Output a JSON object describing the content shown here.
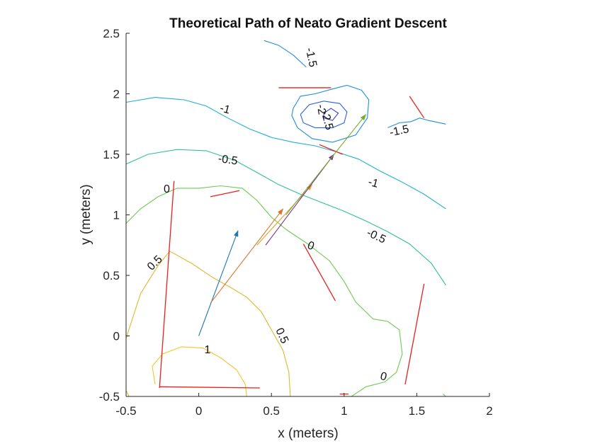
{
  "chart_data": {
    "type": "contour",
    "title": "Theoretical Path of Neato Gradient Descent",
    "xlabel": "x (meters)",
    "ylabel": "y (meters)",
    "xlim": [
      -0.5,
      2
    ],
    "ylim": [
      -0.5,
      2.5
    ],
    "xticks": [
      "-0.5",
      "0",
      "0.5",
      "1",
      "1.5",
      "2"
    ],
    "yticks": [
      "-0.5",
      "0",
      "0.5",
      "1",
      "1.5",
      "2",
      "2.5"
    ],
    "contour_labels": [
      "-1.5",
      "-2",
      "-2.5",
      "-1",
      "-1.5",
      "-0.5",
      "-1",
      "0",
      "-0.5",
      "0",
      "0.5",
      "1",
      "0.5",
      "0"
    ],
    "colors": {
      "level_-2.5": "#3b3fd0",
      "level_-2": "#2a62d8",
      "level_-1.5": "#1f8fd8",
      "level_-1": "#1fb0cf",
      "level_-0.5": "#2fbf9a",
      "level_0": "#6dcb52",
      "level_0.5": "#e0b92a",
      "level_1": "#f2c52a",
      "obstacle": "#e8201f",
      "path_arrow_1": "#1f77b4",
      "path_arrow_2": "#d9762a",
      "path_arrow_3": "#e0a32a",
      "path_arrow_4": "#7e2f8e",
      "path_arrow_5": "#77ac30"
    },
    "contours": [
      {
        "level": -2.5,
        "points": [
          [
            0.86,
            1.84
          ],
          [
            0.91,
            1.88
          ],
          [
            0.96,
            1.84
          ],
          [
            0.92,
            1.78
          ],
          [
            0.86,
            1.8
          ],
          [
            0.86,
            1.84
          ]
        ]
      },
      {
        "level": -2,
        "points": [
          [
            0.7,
            1.83
          ],
          [
            0.76,
            1.91
          ],
          [
            0.86,
            1.94
          ],
          [
            0.97,
            1.92
          ],
          [
            1.02,
            1.85
          ],
          [
            1.0,
            1.76
          ],
          [
            0.92,
            1.72
          ],
          [
            0.8,
            1.72
          ],
          [
            0.72,
            1.76
          ],
          [
            0.7,
            1.83
          ]
        ]
      },
      {
        "level": -1.5,
        "points": [
          [
            0.65,
            1.88
          ],
          [
            0.7,
            1.98
          ],
          [
            0.8,
            2.0
          ],
          [
            0.92,
            2.04
          ],
          [
            1.02,
            2.07
          ],
          [
            1.12,
            2.03
          ],
          [
            1.17,
            1.95
          ],
          [
            1.16,
            1.8
          ],
          [
            1.08,
            1.66
          ],
          [
            0.92,
            1.6
          ],
          [
            0.78,
            1.63
          ],
          [
            0.68,
            1.72
          ],
          [
            0.64,
            1.82
          ],
          [
            0.65,
            1.88
          ]
        ]
      },
      {
        "level": -1.5,
        "points": [
          [
            0.45,
            2.44
          ],
          [
            0.55,
            2.4
          ],
          [
            0.65,
            2.32
          ],
          [
            0.74,
            2.22
          ]
        ]
      },
      {
        "level": -1.5,
        "points": [
          [
            1.3,
            1.72
          ],
          [
            1.38,
            1.76
          ],
          [
            1.46,
            1.77
          ],
          [
            1.52,
            1.8
          ],
          [
            1.58,
            1.78
          ],
          [
            1.7,
            1.75
          ]
        ]
      },
      {
        "level": -1,
        "points": [
          [
            -0.5,
            1.93
          ],
          [
            -0.3,
            1.97
          ],
          [
            -0.1,
            1.95
          ],
          [
            0.05,
            1.9
          ],
          [
            0.2,
            1.8
          ],
          [
            0.35,
            1.71
          ],
          [
            0.5,
            1.64
          ],
          [
            0.65,
            1.6
          ],
          [
            0.8,
            1.57
          ],
          [
            0.95,
            1.52
          ],
          [
            1.1,
            1.46
          ],
          [
            1.25,
            1.36
          ],
          [
            1.4,
            1.27
          ],
          [
            1.55,
            1.17
          ],
          [
            1.7,
            1.05
          ]
        ]
      },
      {
        "level": -0.5,
        "points": [
          [
            -0.5,
            1.42
          ],
          [
            -0.35,
            1.5
          ],
          [
            -0.15,
            1.54
          ],
          [
            0.05,
            1.53
          ],
          [
            0.25,
            1.45
          ],
          [
            0.4,
            1.35
          ],
          [
            0.55,
            1.25
          ],
          [
            0.7,
            1.17
          ],
          [
            0.85,
            1.1
          ],
          [
            1.0,
            1.03
          ],
          [
            1.15,
            0.95
          ],
          [
            1.3,
            0.86
          ],
          [
            1.45,
            0.76
          ],
          [
            1.6,
            0.6
          ],
          [
            1.7,
            0.42
          ]
        ]
      },
      {
        "level": 0,
        "points": [
          [
            -0.5,
            0.93
          ],
          [
            -0.4,
            1.05
          ],
          [
            -0.28,
            1.15
          ],
          [
            -0.15,
            1.22
          ],
          [
            0.0,
            1.22
          ],
          [
            0.15,
            1.24
          ],
          [
            0.3,
            1.22
          ],
          [
            0.4,
            1.12
          ],
          [
            0.5,
            0.98
          ],
          [
            0.6,
            0.88
          ],
          [
            0.75,
            0.76
          ],
          [
            0.9,
            0.62
          ],
          [
            1.0,
            0.45
          ],
          [
            1.08,
            0.28
          ],
          [
            1.2,
            0.14
          ],
          [
            1.3,
            0.12
          ],
          [
            1.38,
            0.05
          ],
          [
            1.4,
            -0.15
          ],
          [
            1.36,
            -0.3
          ],
          [
            1.28,
            -0.38
          ],
          [
            1.15,
            -0.42
          ],
          [
            1.05,
            -0.5
          ]
        ]
      },
      {
        "level": 0,
        "points": [
          [
            1.68,
            -0.48
          ],
          [
            1.7,
            -0.5
          ]
        ]
      },
      {
        "level": 0.5,
        "points": [
          [
            -0.5,
            -0.02
          ],
          [
            -0.4,
            0.35
          ],
          [
            -0.28,
            0.58
          ],
          [
            -0.2,
            0.7
          ],
          [
            -0.05,
            0.6
          ],
          [
            0.1,
            0.48
          ],
          [
            0.22,
            0.4
          ],
          [
            0.33,
            0.32
          ],
          [
            0.43,
            0.2
          ],
          [
            0.5,
            0.05
          ],
          [
            0.58,
            -0.12
          ],
          [
            0.62,
            -0.3
          ],
          [
            0.63,
            -0.5
          ]
        ]
      },
      {
        "level": 0.5,
        "points": [
          [
            -0.5,
            -0.45
          ],
          [
            -0.48,
            -0.5
          ]
        ]
      },
      {
        "level": 1,
        "points": [
          [
            -0.3,
            -0.4
          ],
          [
            -0.32,
            -0.25
          ],
          [
            -0.25,
            -0.15
          ],
          [
            -0.12,
            -0.09
          ],
          [
            0.03,
            -0.1
          ],
          [
            0.15,
            -0.18
          ],
          [
            0.26,
            -0.28
          ],
          [
            0.32,
            -0.4
          ],
          [
            0.33,
            -0.5
          ]
        ]
      }
    ],
    "obstacles": [
      [
        [
          -0.27,
          -0.43
        ],
        [
          -0.17,
          1.28
        ]
      ],
      [
        [
          -0.27,
          -0.42
        ],
        [
          0.42,
          -0.43
        ]
      ],
      [
        [
          0.08,
          1.15
        ],
        [
          0.28,
          1.2
        ]
      ],
      [
        [
          0.55,
          2.05
        ],
        [
          0.91,
          2.05
        ]
      ],
      [
        [
          0.83,
          1.58
        ],
        [
          0.99,
          1.5
        ]
      ],
      [
        [
          0.72,
          0.76
        ],
        [
          0.94,
          0.29
        ]
      ],
      [
        [
          1.42,
          -0.4
        ],
        [
          1.55,
          0.43
        ]
      ],
      [
        [
          1.45,
          1.98
        ],
        [
          1.55,
          1.8
        ]
      ],
      [
        [
          0.97,
          -0.48
        ],
        [
          1.03,
          -0.48
        ]
      ]
    ],
    "path_arrows": [
      {
        "from": [
          0.0,
          0.0
        ],
        "to": [
          0.27,
          0.87
        ],
        "color_key": "path_arrow_1"
      },
      {
        "from": [
          0.08,
          0.27
        ],
        "to": [
          0.58,
          1.05
        ],
        "color_key": "path_arrow_2"
      },
      {
        "from": [
          0.4,
          0.75
        ],
        "to": [
          0.78,
          1.25
        ],
        "color_key": "path_arrow_3"
      },
      {
        "from": [
          0.46,
          0.75
        ],
        "to": [
          0.93,
          1.5
        ],
        "color_key": "path_arrow_4"
      },
      {
        "from": [
          0.6,
          1.0
        ],
        "to": [
          1.15,
          1.83
        ],
        "color_key": "path_arrow_5"
      }
    ]
  }
}
